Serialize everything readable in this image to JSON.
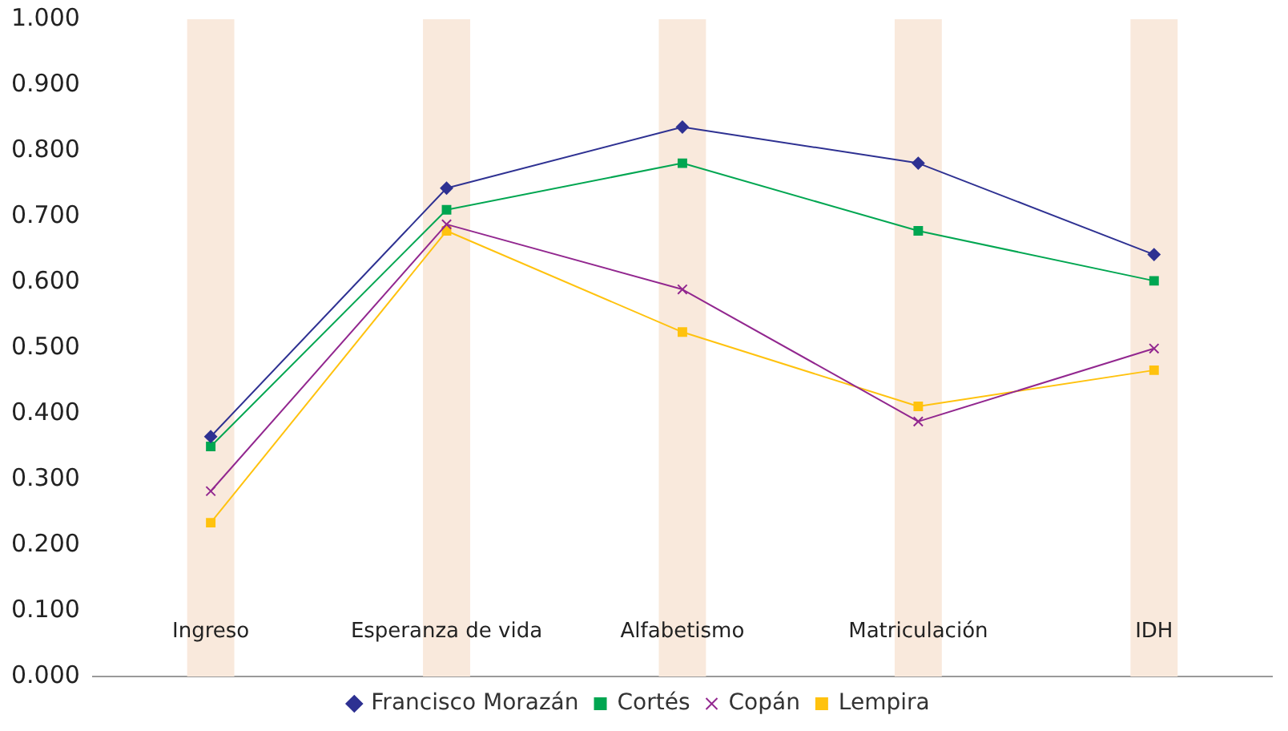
{
  "chart_data": {
    "type": "line",
    "categories": [
      "Ingreso",
      "Esperanza de vida",
      "Alfabetismo",
      "Matriculación",
      "IDH"
    ],
    "series": [
      {
        "type": "bar",
        "color": "#f9e9dc",
        "values": [
          1,
          1,
          1,
          1,
          1
        ]
      },
      {
        "name": "Francisco Morazán",
        "color": "#2e3192",
        "marker": "diamond",
        "values": [
          0.365,
          0.743,
          0.836,
          0.781,
          0.642
        ]
      },
      {
        "name": "Cortés",
        "color": "#00a651",
        "marker": "square",
        "values": [
          0.35,
          0.71,
          0.781,
          0.678,
          0.602
        ]
      },
      {
        "name": "Copán",
        "color": "#92278f",
        "marker": "cross",
        "values": [
          0.282,
          0.688,
          0.589,
          0.388,
          0.499
        ]
      },
      {
        "name": "Lempira",
        "color": "#ffc20e",
        "marker": "square",
        "values": [
          0.234,
          0.678,
          0.524,
          0.411,
          0.466
        ]
      }
    ],
    "ylim": [
      0,
      1
    ],
    "yticks": [
      {
        "value": 0,
        "label": "0.000"
      },
      {
        "value": 0.1,
        "label": "0.100"
      },
      {
        "value": 0.2,
        "label": "0.200"
      },
      {
        "value": 0.3,
        "label": "0.300"
      },
      {
        "value": 0.4,
        "label": "0.400"
      },
      {
        "value": 0.5,
        "label": "0.500"
      },
      {
        "value": 0.6,
        "label": "0.600"
      },
      {
        "value": 0.7,
        "label": "0.700"
      },
      {
        "value": 0.8,
        "label": "0.800"
      },
      {
        "value": 0.9,
        "label": "0.900"
      },
      {
        "value": 1,
        "label": "1.000"
      }
    ],
    "grid": false,
    "legend": "bottom"
  }
}
